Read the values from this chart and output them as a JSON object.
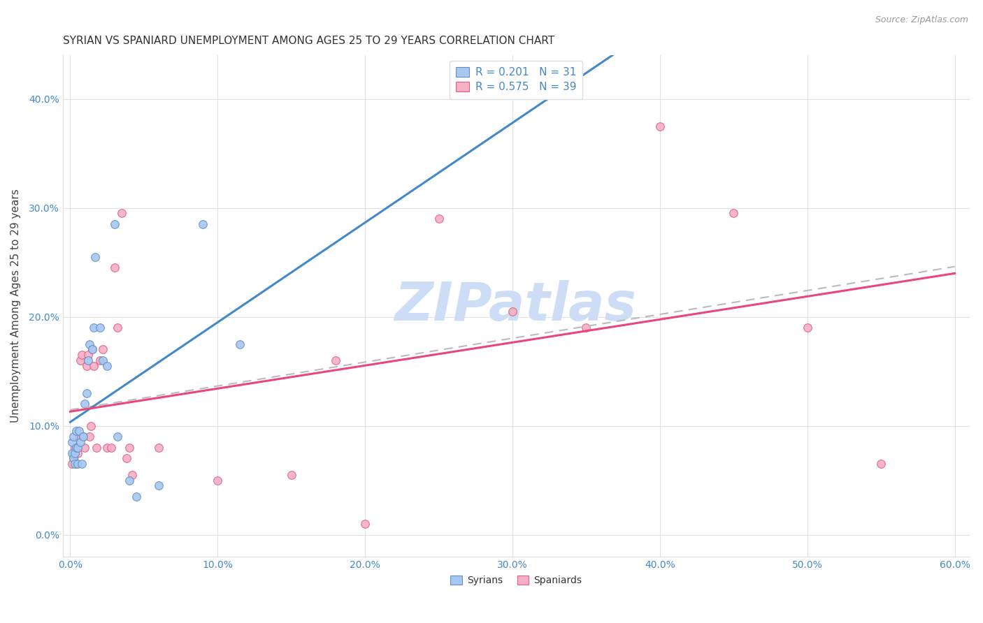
{
  "title": "SYRIAN VS SPANIARD UNEMPLOYMENT AMONG AGES 25 TO 29 YEARS CORRELATION CHART",
  "source": "Source: ZipAtlas.com",
  "ylabel": "Unemployment Among Ages 25 to 29 years",
  "xlim": [
    -0.005,
    0.61
  ],
  "ylim": [
    -0.02,
    0.44
  ],
  "xticks": [
    0.0,
    0.1,
    0.2,
    0.3,
    0.4,
    0.5,
    0.6
  ],
  "xtick_labels": [
    "0.0%",
    "10.0%",
    "20.0%",
    "30.0%",
    "40.0%",
    "50.0%",
    "60.0%"
  ],
  "yticks": [
    0.0,
    0.1,
    0.2,
    0.3,
    0.4
  ],
  "ytick_labels": [
    "0.0%",
    "10.0%",
    "20.0%",
    "30.0%",
    "40.0%"
  ],
  "syrian_color": "#a8c8f0",
  "spaniard_color": "#f5b0c5",
  "syrian_edge": "#6090cc",
  "spaniard_edge": "#e06080",
  "regression_syrian_color": "#4488cc",
  "regression_spaniard_color": "#e84878",
  "regression_dashed_color": "#bbbbbb",
  "legend_text_color": "#4488cc",
  "watermark": "ZIPatlas",
  "watermark_color": "#ccddf5",
  "R_syrian": 0.201,
  "N_syrian": 31,
  "R_spaniard": 0.575,
  "N_spaniard": 39,
  "syrian_x": [
    0.001,
    0.001,
    0.002,
    0.002,
    0.003,
    0.003,
    0.004,
    0.004,
    0.005,
    0.005,
    0.006,
    0.007,
    0.008,
    0.009,
    0.01,
    0.011,
    0.012,
    0.013,
    0.015,
    0.016,
    0.017,
    0.02,
    0.022,
    0.025,
    0.03,
    0.032,
    0.04,
    0.045,
    0.06,
    0.09,
    0.115
  ],
  "syrian_y": [
    0.075,
    0.085,
    0.07,
    0.09,
    0.065,
    0.075,
    0.08,
    0.095,
    0.065,
    0.08,
    0.095,
    0.085,
    0.065,
    0.09,
    0.12,
    0.13,
    0.16,
    0.175,
    0.17,
    0.19,
    0.255,
    0.19,
    0.16,
    0.155,
    0.285,
    0.09,
    0.05,
    0.035,
    0.045,
    0.285,
    0.175
  ],
  "spaniard_x": [
    0.001,
    0.002,
    0.003,
    0.004,
    0.005,
    0.006,
    0.007,
    0.008,
    0.009,
    0.01,
    0.011,
    0.012,
    0.013,
    0.014,
    0.015,
    0.016,
    0.018,
    0.02,
    0.022,
    0.025,
    0.028,
    0.03,
    0.032,
    0.035,
    0.038,
    0.04,
    0.042,
    0.06,
    0.1,
    0.15,
    0.18,
    0.2,
    0.25,
    0.3,
    0.35,
    0.4,
    0.45,
    0.5,
    0.55
  ],
  "spaniard_y": [
    0.065,
    0.07,
    0.08,
    0.065,
    0.075,
    0.09,
    0.16,
    0.165,
    0.09,
    0.08,
    0.155,
    0.165,
    0.09,
    0.1,
    0.17,
    0.155,
    0.08,
    0.16,
    0.17,
    0.08,
    0.08,
    0.245,
    0.19,
    0.295,
    0.07,
    0.08,
    0.055,
    0.08,
    0.05,
    0.055,
    0.16,
    0.01,
    0.29,
    0.205,
    0.19,
    0.375,
    0.295,
    0.19,
    0.065
  ],
  "marker_size": 70,
  "marker_linewidth": 0.8
}
